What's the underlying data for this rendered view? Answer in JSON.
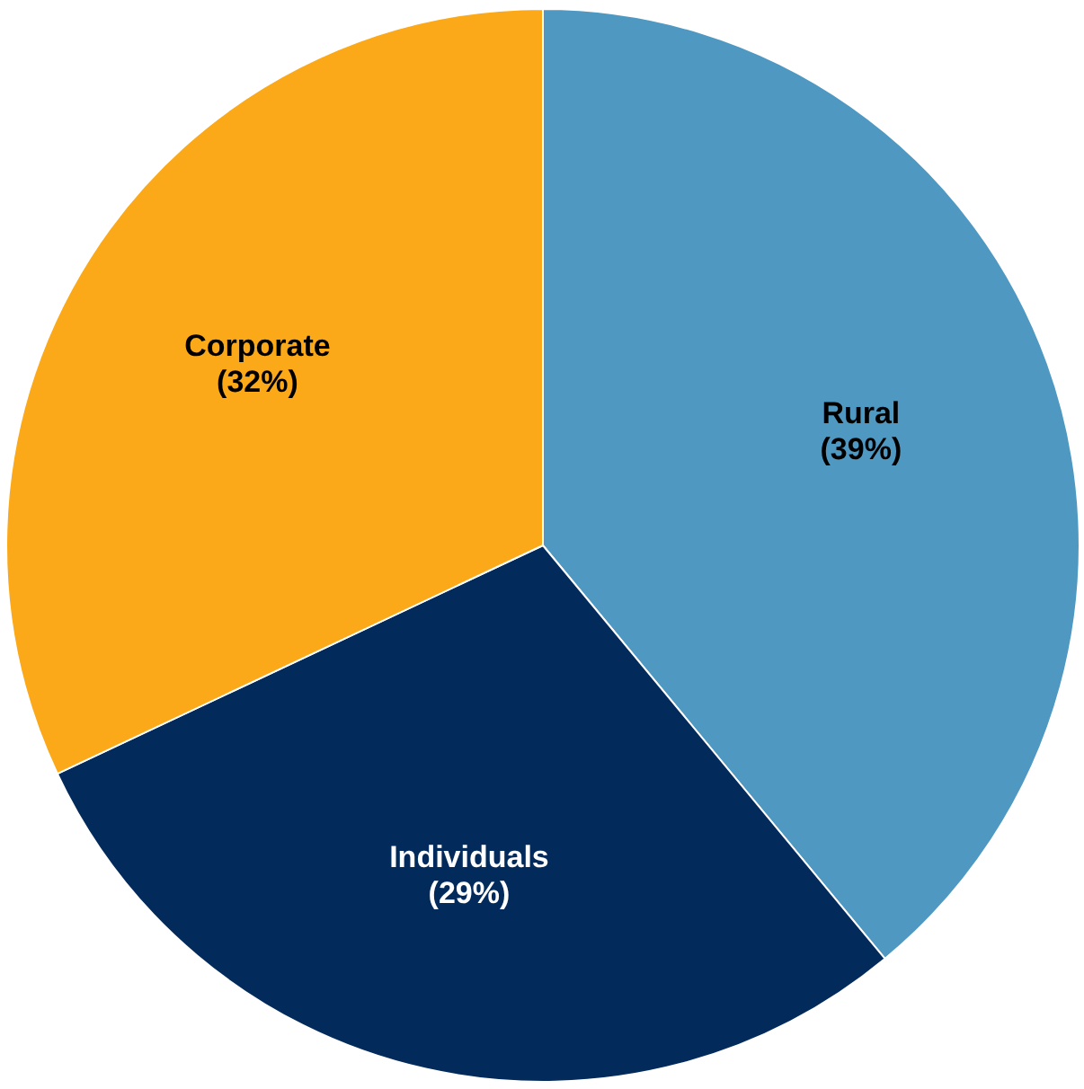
{
  "chart_data": {
    "type": "pie",
    "categories": [
      "Rural",
      "Individuals",
      "Corporate"
    ],
    "values": [
      39,
      29,
      32
    ],
    "colors": [
      "#4f98c2",
      "#022b5c",
      "#fba919"
    ],
    "value_labels": [
      "(39%)",
      "(29%)",
      "(32%)"
    ]
  }
}
